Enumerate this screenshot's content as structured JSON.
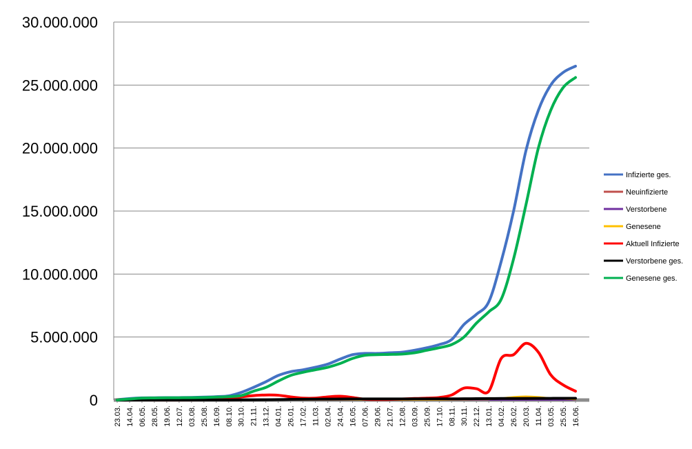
{
  "chart_data": {
    "type": "line",
    "title": "",
    "xlabel": "",
    "ylabel": "",
    "ylim": [
      0,
      30000000
    ],
    "yticks": [
      0,
      5000000,
      10000000,
      15000000,
      20000000,
      25000000,
      30000000
    ],
    "ytick_labels": [
      "0",
      "5.000.000",
      "10.000.000",
      "15.000.000",
      "20.000.000",
      "25.000.000",
      "30.000.000"
    ],
    "grid": "horizontal",
    "legend_position": "right",
    "categories": [
      "23.03.",
      "14.04.",
      "06.05.",
      "28.05.",
      "19.06.",
      "12.07.",
      "03.08.",
      "25.08.",
      "16.09.",
      "08.10.",
      "30.10.",
      "21.11.",
      "13.12.",
      "04.01.",
      "26.01.",
      "17.02.",
      "11.03.",
      "02.04.",
      "24.04.",
      "16.05.",
      "07.06.",
      "29.06.",
      "21.07.",
      "12.08.",
      "03.09.",
      "25.09.",
      "17.10.",
      "08.11.",
      "30.11.",
      "22.12.",
      "13.01.",
      "04.02.",
      "26.02.",
      "20.03.",
      "11.04.",
      "03.05.",
      "25.05.",
      "16.06."
    ],
    "series": [
      {
        "name": "Infizierte ges.",
        "color": "#4472c4",
        "values": [
          30000,
          120000,
          170000,
          180000,
          190000,
          195000,
          205000,
          230000,
          270000,
          330000,
          600000,
          1000000,
          1450000,
          1950000,
          2250000,
          2400000,
          2600000,
          2850000,
          3250000,
          3600000,
          3700000,
          3700000,
          3750000,
          3800000,
          3950000,
          4150000,
          4400000,
          4800000,
          6000000,
          6800000,
          7800000,
          11000000,
          15000000,
          19800000,
          23000000,
          25000000,
          26000000,
          26500000
        ]
      },
      {
        "name": "Neuinfizierte",
        "color": "#c0504d",
        "values": [
          2000,
          2000,
          1000,
          800,
          700,
          800,
          1000,
          1500,
          2500,
          5000,
          20000,
          20000,
          22000,
          20000,
          12000,
          9000,
          12000,
          20000,
          15000,
          8000,
          3000,
          2000,
          3000,
          5000,
          8000,
          10000,
          15000,
          30000,
          50000,
          40000,
          60000,
          150000,
          200000,
          250000,
          150000,
          80000,
          40000,
          20000
        ]
      },
      {
        "name": "Verstorbene",
        "color": "#7030a0",
        "values": [
          100,
          200,
          150,
          80,
          50,
          30,
          20,
          20,
          30,
          50,
          300,
          500,
          800,
          900,
          700,
          500,
          300,
          300,
          250,
          200,
          100,
          50,
          40,
          50,
          80,
          100,
          150,
          300,
          400,
          350,
          300,
          300,
          350,
          300,
          250,
          200,
          150,
          100
        ]
      },
      {
        "name": "Genesene",
        "color": "#ffc000",
        "values": [
          1000,
          4000,
          3000,
          2000,
          1000,
          800,
          700,
          1000,
          1500,
          3000,
          10000,
          15000,
          18000,
          20000,
          15000,
          10000,
          12000,
          15000,
          15000,
          12000,
          5000,
          2000,
          2000,
          3000,
          5000,
          8000,
          10000,
          20000,
          30000,
          40000,
          50000,
          150000,
          250000,
          300000,
          250000,
          150000,
          80000,
          40000
        ]
      },
      {
        "name": "Aktuell Infizierte",
        "color": "#ff0000",
        "values": [
          20000,
          50000,
          30000,
          15000,
          10000,
          10000,
          15000,
          25000,
          40000,
          80000,
          250000,
          350000,
          400000,
          380000,
          250000,
          150000,
          150000,
          250000,
          300000,
          200000,
          60000,
          40000,
          50000,
          80000,
          120000,
          150000,
          200000,
          400000,
          950000,
          900000,
          700000,
          3300000,
          3600000,
          4500000,
          3800000,
          2000000,
          1200000,
          700000
        ]
      },
      {
        "name": "Verstorbene ges.",
        "color": "#000000",
        "values": [
          500,
          4000,
          7500,
          8500,
          9000,
          9100,
          9200,
          9300,
          9500,
          9700,
          11000,
          15000,
          22000,
          35000,
          52000,
          64000,
          70000,
          77000,
          83000,
          87000,
          89000,
          90000,
          91000,
          91500,
          92500,
          94000,
          95500,
          97000,
          100000,
          108000,
          115000,
          120000,
          123000,
          125000,
          128000,
          133000,
          137000,
          140000
        ]
      },
      {
        "name": "Genesene ges.",
        "color": "#00b050",
        "values": [
          5000,
          80000,
          150000,
          165000,
          175000,
          180000,
          185000,
          200000,
          230000,
          270000,
          350000,
          700000,
          1000000,
          1500000,
          1950000,
          2200000,
          2400000,
          2600000,
          2900000,
          3300000,
          3550000,
          3600000,
          3620000,
          3650000,
          3750000,
          3950000,
          4150000,
          4400000,
          5000000,
          6100000,
          7000000,
          8000000,
          11200000,
          15500000,
          20000000,
          23000000,
          24800000,
          25600000
        ]
      }
    ]
  }
}
